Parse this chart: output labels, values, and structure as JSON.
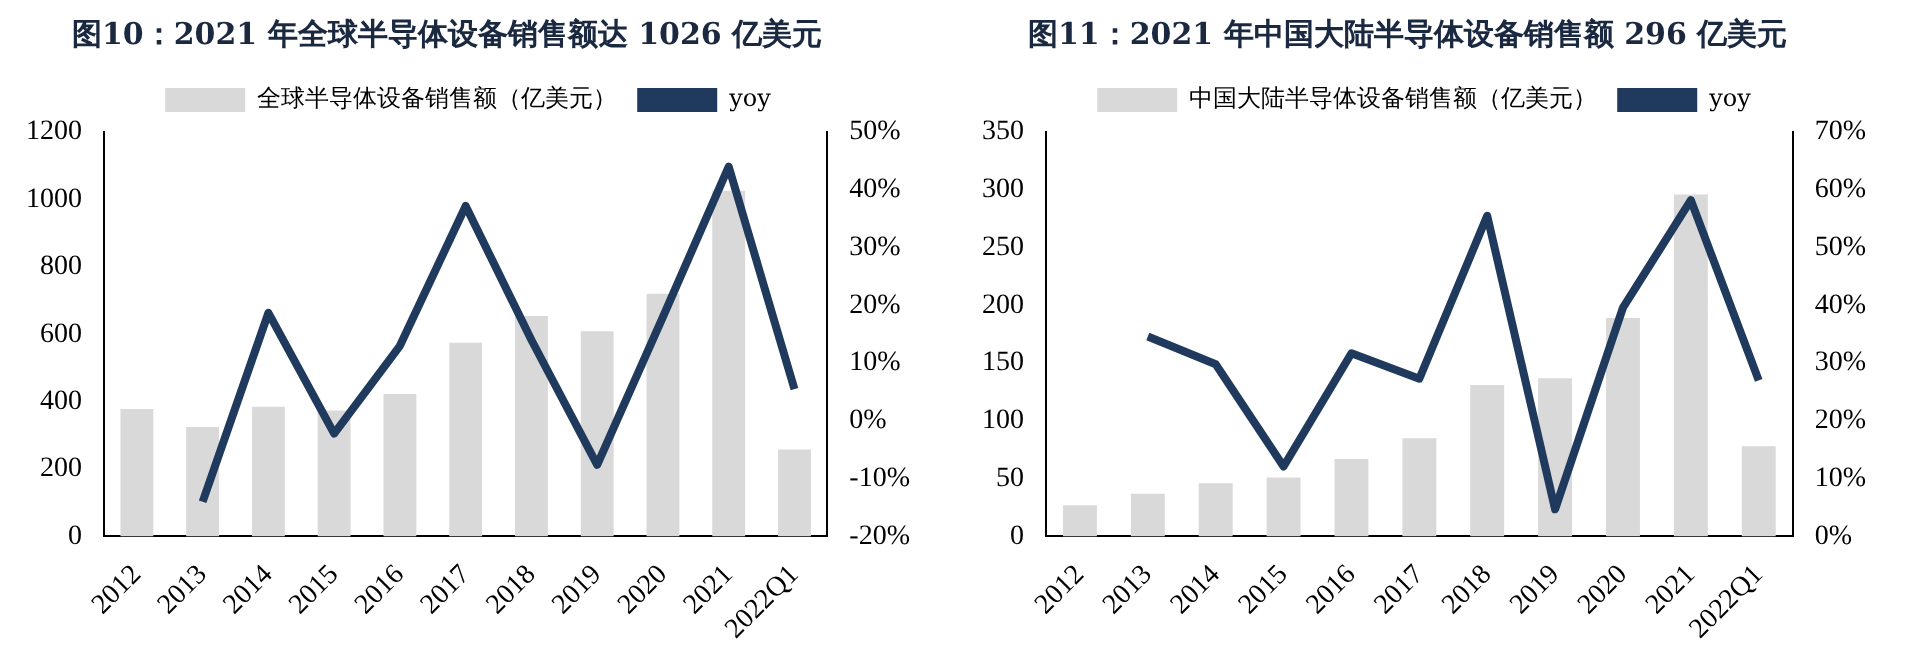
{
  "chart_data": [
    {
      "type": "bar",
      "title": "图10：2021 年全球半导体设备销售额达 1026 亿美元",
      "categories": [
        "2012",
        "2013",
        "2014",
        "2015",
        "2016",
        "2017",
        "2018",
        "2019",
        "2020",
        "2021",
        "2022Q1"
      ],
      "series": [
        {
          "name": "全球半导体设备销售额（亿美元）",
          "color": "#d9d9d9",
          "values": [
            378,
            325,
            385,
            374,
            423,
            575,
            654,
            609,
            720,
            1026,
            258
          ]
        },
        {
          "name": "yoy",
          "type": "line",
          "axis": "y2",
          "color": "#1f3a5c",
          "values": [
            null,
            -14,
            18.7,
            -2.2,
            13,
            37.2,
            14,
            -7.6,
            18,
            44,
            5.5
          ]
        }
      ],
      "ylim": [
        0,
        1200
      ],
      "yticks": [
        0,
        200,
        400,
        600,
        800,
        1000,
        1200
      ],
      "y2lim": [
        -20,
        50
      ],
      "y2ticks": [
        {
          "value": -20,
          "label": "-20%"
        },
        {
          "value": -10,
          "label": "-10%"
        },
        {
          "value": 0,
          "label": "0%"
        },
        {
          "value": 10,
          "label": "10%"
        },
        {
          "value": 20,
          "label": "20%"
        },
        {
          "value": 30,
          "label": "30%"
        },
        {
          "value": 40,
          "label": "40%"
        },
        {
          "value": 50,
          "label": "50%"
        }
      ],
      "legend": "top",
      "grid": false,
      "marker": "none"
    },
    {
      "type": "bar",
      "title": "图11：2021 年中国大陆半导体设备销售额 296 亿美元",
      "categories": [
        "2012",
        "2013",
        "2014",
        "2015",
        "2016",
        "2017",
        "2018",
        "2019",
        "2020",
        "2021",
        "2022Q1"
      ],
      "series": [
        {
          "name": "中国大陆半导体设备销售额（亿美元）",
          "color": "#d9d9d9",
          "values": [
            27,
            37,
            46,
            51,
            67,
            85,
            131,
            137,
            189,
            296,
            78
          ]
        },
        {
          "name": "yoy",
          "type": "line",
          "axis": "y2",
          "color": "#1f3a5c",
          "values": [
            null,
            34.6,
            29.8,
            12.1,
            31.7,
            27.3,
            55.5,
            4.7,
            39.6,
            58.2,
            27
          ]
        }
      ],
      "ylim": [
        0,
        350
      ],
      "yticks": [
        0,
        50,
        100,
        150,
        200,
        250,
        300,
        350
      ],
      "y2lim": [
        0,
        70
      ],
      "y2ticks": [
        {
          "value": 0,
          "label": "0%"
        },
        {
          "value": 10,
          "label": "10%"
        },
        {
          "value": 20,
          "label": "20%"
        },
        {
          "value": 30,
          "label": "30%"
        },
        {
          "value": 40,
          "label": "40%"
        },
        {
          "value": 50,
          "label": "50%"
        },
        {
          "value": 60,
          "label": "60%"
        },
        {
          "value": 70,
          "label": "70%"
        }
      ],
      "legend": "top",
      "grid": false,
      "marker": "none"
    }
  ]
}
